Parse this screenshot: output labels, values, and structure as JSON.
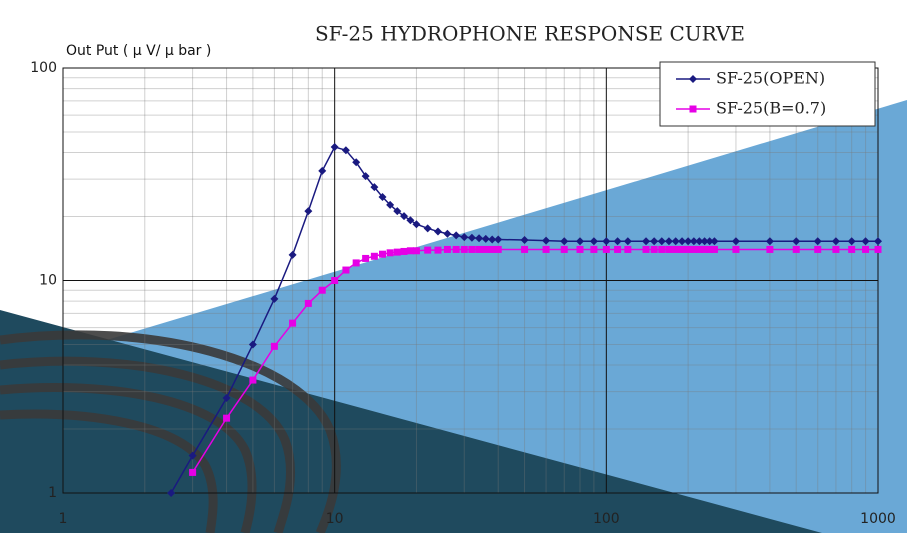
{
  "chart_data": {
    "type": "line",
    "title": "SF-25 HYDROPHONE RESPONSE CURVE",
    "y_label": "Out Put ( μ V/ μ bar )",
    "log_x": true,
    "log_y": true,
    "grid": true,
    "legend": "top-right",
    "xlim": [
      1,
      1000
    ],
    "xticks": [
      1,
      10,
      100,
      1000
    ],
    "ylim": [
      1,
      100
    ],
    "yticks": [
      1,
      10,
      100
    ],
    "series": [
      {
        "name": "SF-25(OPEN)",
        "color": "#1a1a80",
        "marker": "diamond",
        "x": [
          2.5,
          3,
          4,
          5,
          6,
          7,
          8,
          9,
          10,
          11,
          12,
          13,
          14,
          15,
          16,
          17,
          18,
          19,
          20,
          22,
          24,
          26,
          28,
          30,
          32,
          34,
          36,
          38,
          40,
          50,
          60,
          70,
          80,
          90,
          100,
          110,
          120,
          140,
          150,
          160,
          170,
          180,
          190,
          200,
          210,
          220,
          230,
          240,
          250,
          300,
          400,
          500,
          600,
          700,
          800,
          900,
          1000
        ],
        "values": [
          1.0,
          1.5,
          2.8,
          5.0,
          8.2,
          13.2,
          21.2,
          32.8,
          42.5,
          41,
          36,
          31,
          27.5,
          24.7,
          22.7,
          21.2,
          20.1,
          19.2,
          18.4,
          17.6,
          17.0,
          16.6,
          16.3,
          16.0,
          15.9,
          15.8,
          15.7,
          15.6,
          15.6,
          15.5,
          15.4,
          15.3,
          15.3,
          15.3,
          15.3,
          15.3,
          15.3,
          15.3,
          15.3,
          15.3,
          15.3,
          15.3,
          15.3,
          15.3,
          15.3,
          15.3,
          15.3,
          15.3,
          15.3,
          15.3,
          15.3,
          15.3,
          15.3,
          15.3,
          15.3,
          15.3,
          15.3
        ]
      },
      {
        "name": "SF-25(B=0.7)",
        "color": "#e600e6",
        "marker": "square",
        "x": [
          3,
          4,
          5,
          6,
          7,
          8,
          9,
          10,
          11,
          12,
          13,
          14,
          15,
          16,
          17,
          18,
          19,
          20,
          22,
          24,
          26,
          28,
          30,
          32,
          34,
          36,
          38,
          40,
          50,
          60,
          70,
          80,
          90,
          100,
          110,
          120,
          140,
          150,
          160,
          170,
          180,
          190,
          200,
          210,
          220,
          230,
          240,
          250,
          300,
          400,
          500,
          600,
          700,
          800,
          900,
          1000
        ],
        "values": [
          1.25,
          2.25,
          3.4,
          4.9,
          6.3,
          7.8,
          9.0,
          10.0,
          11.2,
          12.1,
          12.7,
          13.0,
          13.3,
          13.5,
          13.6,
          13.7,
          13.8,
          13.8,
          13.9,
          13.9,
          14.0,
          14.0,
          14.0,
          14.0,
          14.0,
          14.0,
          14.0,
          14.0,
          14.0,
          14.0,
          14.0,
          14.0,
          14.0,
          14.0,
          14.0,
          14.0,
          14.0,
          14.0,
          14.0,
          14.0,
          14.0,
          14.0,
          14.0,
          14.0,
          14.0,
          14.0,
          14.0,
          14.0,
          14.0,
          14.0,
          14.0,
          14.0,
          14.0,
          14.0,
          14.0,
          14.0
        ]
      }
    ]
  }
}
